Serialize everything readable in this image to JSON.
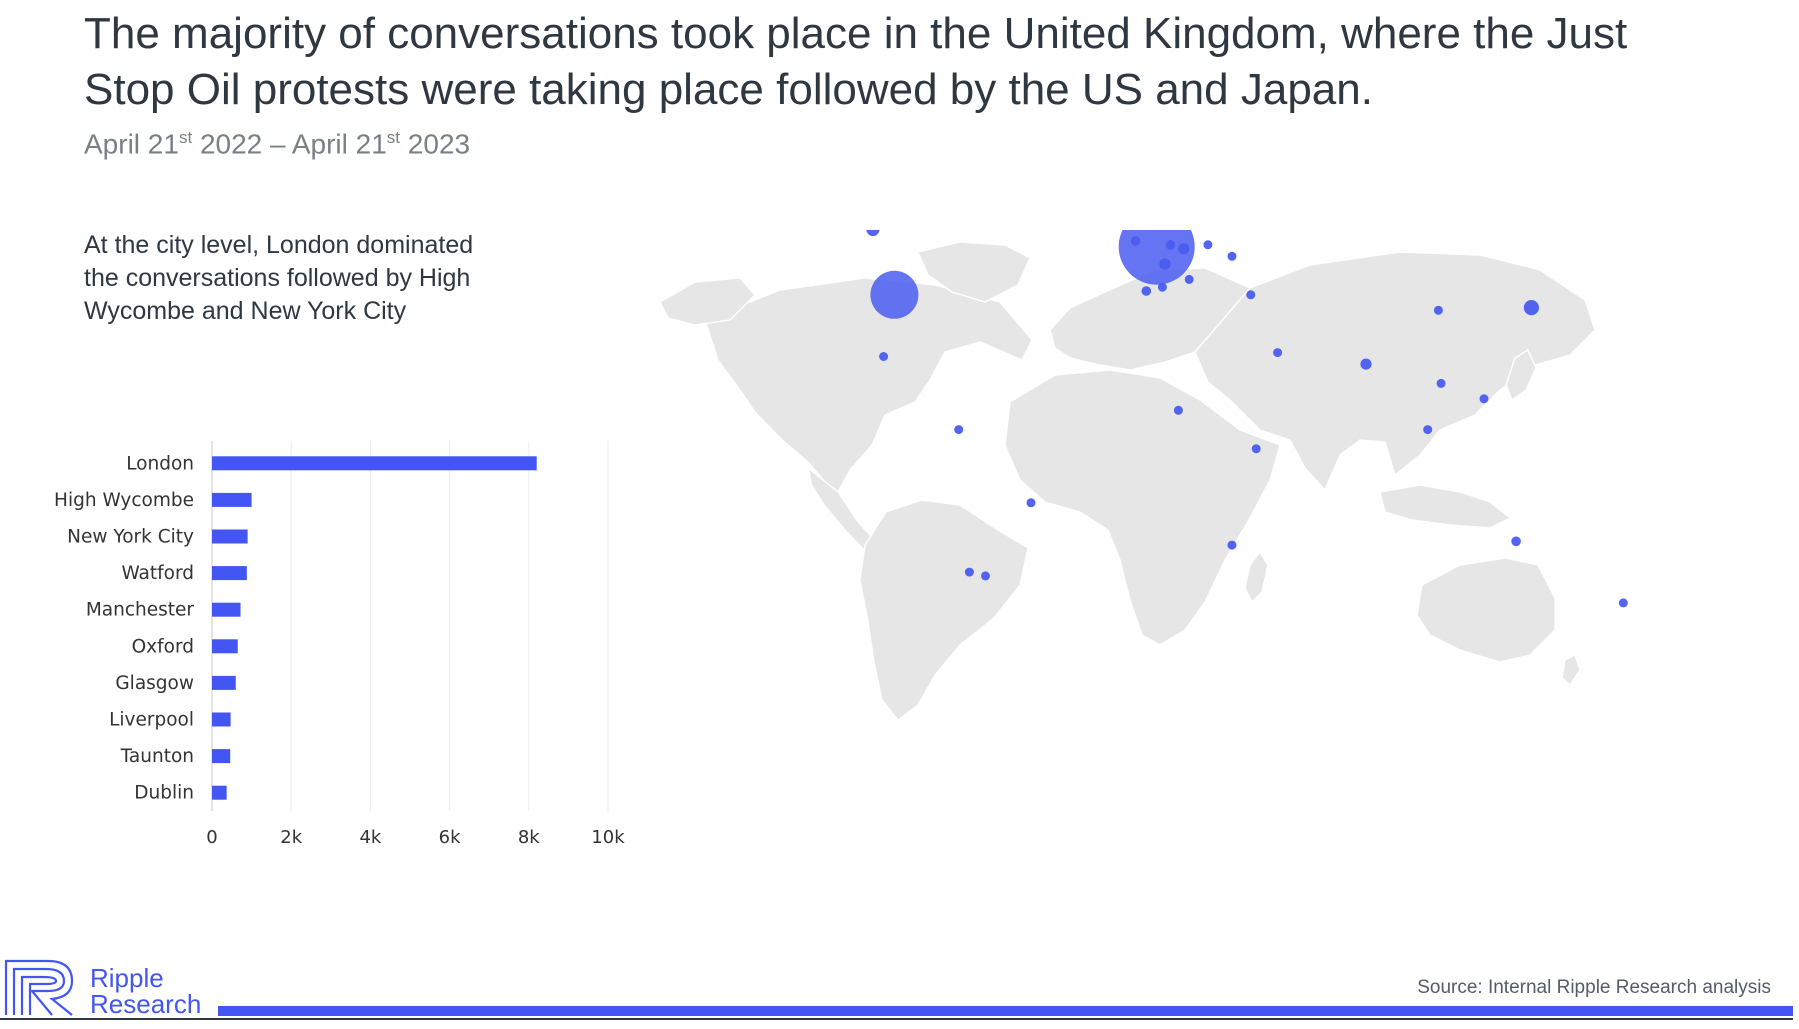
{
  "headline": "The majority of conversations took place in the United Kingdom, where the Just Stop Oil protests were taking place followed by the US and Japan.",
  "date_range": {
    "start_prefix": "April 21",
    "start_suffix": "st",
    "start_year": " 2022",
    "separator": " – ",
    "end_prefix": "April 21",
    "end_suffix": "st",
    "end_year": " 2023"
  },
  "insight": "At the city level, London dominated the conversations followed by High Wycombe and New York City",
  "colors": {
    "accent": "#4355f2",
    "bubble": "#4a5cf0",
    "land": "#e6e6e6",
    "text": "#2f3740"
  },
  "chart_data": [
    {
      "type": "bar",
      "orientation": "horizontal",
      "categories": [
        "London",
        "High Wycombe",
        "New York City",
        "Watford",
        "Manchester",
        "Oxford",
        "Glasgow",
        "Liverpool",
        "Taunton",
        "Dublin"
      ],
      "values": [
        8200,
        1000,
        900,
        880,
        720,
        650,
        600,
        470,
        460,
        370
      ],
      "xlim": [
        0,
        10000
      ],
      "xticks": [
        0,
        2000,
        4000,
        6000,
        8000,
        10000
      ],
      "xtick_labels": [
        "0",
        "2k",
        "4k",
        "6k",
        "8k",
        "10k"
      ],
      "grid": "vertical",
      "title": "",
      "xlabel": "",
      "ylabel": ""
    },
    {
      "type": "scatter",
      "subtype": "bubble-map",
      "title": "",
      "points": [
        {
          "lon": -0.1,
          "lat": 51.5,
          "size": 100
        },
        {
          "lon": -98,
          "lat": 39,
          "size": 40
        },
        {
          "lon": 139.7,
          "lat": 35.7,
          "size": 4
        },
        {
          "lon": -106,
          "lat": 56,
          "size": 3
        },
        {
          "lon": 78,
          "lat": 21,
          "size": 2.2
        },
        {
          "lon": 134,
          "lat": -25,
          "size": 1.6
        },
        {
          "lon": 3,
          "lat": 47,
          "size": 2.2
        },
        {
          "lon": -4,
          "lat": 40,
          "size": 1.6
        },
        {
          "lon": 10,
          "lat": 51,
          "size": 2.2
        },
        {
          "lon": 5,
          "lat": 52,
          "size": 1.6
        },
        {
          "lon": -8,
          "lat": 53,
          "size": 1.6
        },
        {
          "lon": 12,
          "lat": 43,
          "size": 1
        },
        {
          "lon": 8,
          "lat": 9,
          "size": 1
        },
        {
          "lon": 37,
          "lat": -1,
          "size": 1
        },
        {
          "lon": -74,
          "lat": 4,
          "size": 1
        },
        {
          "lon": -102,
          "lat": 23,
          "size": 1
        },
        {
          "lon": -47,
          "lat": -15,
          "size": 0.8
        },
        {
          "lon": 28,
          "lat": -26,
          "size": 0.8
        },
        {
          "lon": -64,
          "lat": -34,
          "size": 0.6
        },
        {
          "lon": -70,
          "lat": -33,
          "size": 0.6
        },
        {
          "lon": 105,
          "lat": 35,
          "size": 0.8
        },
        {
          "lon": 106,
          "lat": 16,
          "size": 0.8
        },
        {
          "lon": 101,
          "lat": 4,
          "size": 0.6
        },
        {
          "lon": 122,
          "lat": 12,
          "size": 0.6
        },
        {
          "lon": 35,
          "lat": 39,
          "size": 0.8
        },
        {
          "lon": 45,
          "lat": 24,
          "size": 0.6
        },
        {
          "lon": 19,
          "lat": 52,
          "size": 0.8
        },
        {
          "lon": 28,
          "lat": 49,
          "size": 0.6
        },
        {
          "lon": 18,
          "lat": 62,
          "size": 0.5
        },
        {
          "lon": 100,
          "lat": 64,
          "size": 0.5
        },
        {
          "lon": 174,
          "lat": -41,
          "size": 0.5
        },
        {
          "lon": 2,
          "lat": 41,
          "size": 0.6
        }
      ]
    }
  ],
  "footer": {
    "logo_line1": "Ripple",
    "logo_line2": "Research",
    "logo_icon": "ripple-logo-icon",
    "source": "Source: Internal Ripple Research analysis"
  }
}
